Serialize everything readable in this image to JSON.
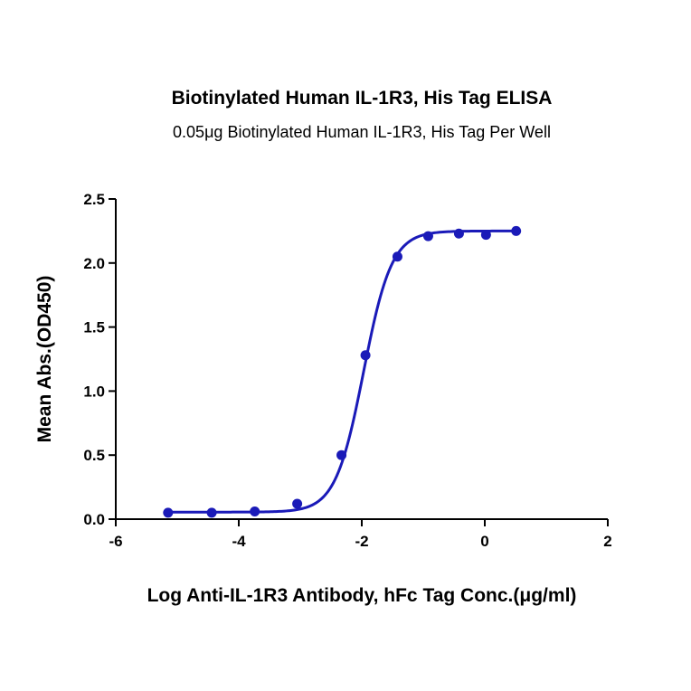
{
  "chart_data": {
    "type": "scatter",
    "title": "Biotinylated Human IL-1R3, His Tag ELISA",
    "subtitle": "0.05μg Biotinylated Human IL-1R3, His Tag Per Well",
    "xlabel": "Log Anti-IL-1R3 Antibody, hFc Tag Conc.(μg/ml)",
    "ylabel": "Mean Abs.(OD450)",
    "xlim": [
      -6,
      2
    ],
    "ylim": [
      0,
      2.5
    ],
    "xticks": [
      "-6",
      "-4",
      "-2",
      "0",
      "2"
    ],
    "yticks": [
      "0.0",
      "0.5",
      "1.0",
      "1.5",
      "2.0",
      "2.5"
    ],
    "grid": false,
    "series": [
      {
        "color": "#1a1ab8",
        "x": [
          -5.15,
          -4.44,
          -3.74,
          -3.05,
          -2.33,
          -1.94,
          -1.42,
          -0.92,
          -0.42,
          0.02,
          0.51
        ],
        "y": [
          0.05,
          0.05,
          0.06,
          0.12,
          0.5,
          1.28,
          2.05,
          2.21,
          2.23,
          2.22,
          2.25
        ]
      }
    ],
    "fit_curve": {
      "bottom": 0.055,
      "top": 2.25,
      "log_ec50": -1.97,
      "hill": 1.9
    }
  }
}
